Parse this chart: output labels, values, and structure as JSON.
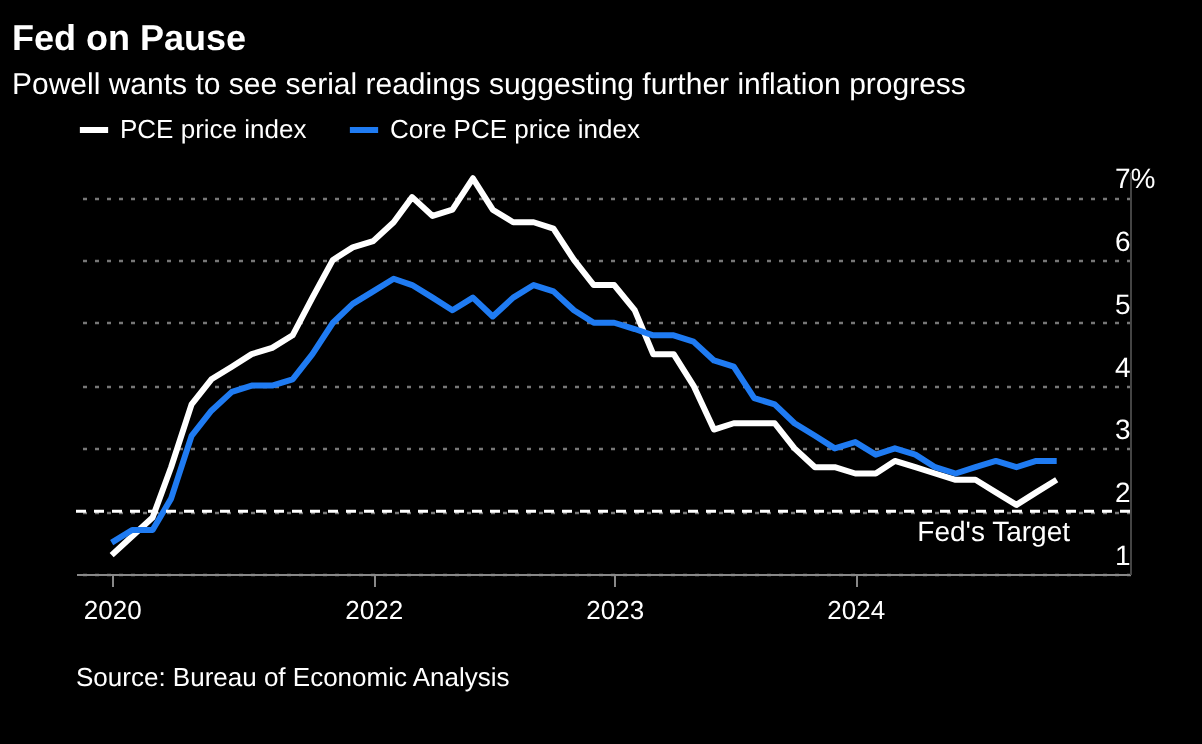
{
  "chart_data": {
    "type": "line",
    "title": "Fed on Pause",
    "subtitle": "Powell wants to see serial readings suggesting further inflation progress",
    "x": [
      "2020-12",
      "2021-01",
      "2021-02",
      "2021-03",
      "2021-04",
      "2021-05",
      "2021-06",
      "2021-07",
      "2021-08",
      "2021-09",
      "2021-10",
      "2021-11",
      "2021-12",
      "2022-01",
      "2022-02",
      "2022-03",
      "2022-04",
      "2022-05",
      "2022-06",
      "2022-07",
      "2022-08",
      "2022-09",
      "2022-10",
      "2022-11",
      "2022-12",
      "2023-01",
      "2023-02",
      "2023-03",
      "2023-04",
      "2023-05",
      "2023-06",
      "2023-07",
      "2023-08",
      "2023-09",
      "2023-10",
      "2023-11",
      "2023-12",
      "2024-01",
      "2024-02",
      "2024-03",
      "2024-04",
      "2024-05",
      "2024-06",
      "2024-07",
      "2024-08",
      "2024-09",
      "2024-10",
      "2024-11"
    ],
    "series": [
      {
        "name": "PCE price index",
        "color": "#ffffff",
        "values": [
          1.3,
          1.6,
          1.9,
          2.7,
          3.7,
          4.1,
          4.3,
          4.5,
          4.6,
          4.8,
          5.4,
          6.0,
          6.2,
          6.3,
          6.6,
          7.0,
          6.7,
          6.8,
          7.3,
          6.8,
          6.6,
          6.6,
          6.5,
          6.0,
          5.6,
          5.6,
          5.2,
          4.5,
          4.5,
          4.0,
          3.3,
          3.4,
          3.4,
          3.4,
          3.0,
          2.7,
          2.7,
          2.6,
          2.6,
          2.8,
          2.7,
          2.6,
          2.5,
          2.5,
          2.3,
          2.1,
          2.3,
          2.5
        ]
      },
      {
        "name": "Core PCE price index",
        "color": "#1f7bf2",
        "values": [
          1.5,
          1.7,
          1.7,
          2.2,
          3.2,
          3.6,
          3.9,
          4.0,
          4.0,
          4.1,
          4.5,
          5.0,
          5.3,
          5.5,
          5.7,
          5.6,
          5.4,
          5.2,
          5.4,
          5.1,
          5.4,
          5.6,
          5.5,
          5.2,
          5.0,
          5.0,
          4.9,
          4.8,
          4.8,
          4.7,
          4.4,
          4.3,
          3.8,
          3.7,
          3.4,
          3.2,
          3.0,
          3.1,
          2.9,
          3.0,
          2.9,
          2.7,
          2.6,
          2.7,
          2.8,
          2.7,
          2.8,
          2.8
        ]
      }
    ],
    "xlim": [
      "2020-10-08",
      "2025-02-20"
    ],
    "xticks": [
      {
        "value": "2020-12",
        "label": "2020"
      },
      {
        "value": "2022-01",
        "label": "2022"
      },
      {
        "value": "2023-01",
        "label": "2023"
      },
      {
        "value": "2024-01",
        "label": "2024"
      }
    ],
    "ylim": [
      1,
      7.4
    ],
    "yticks": [
      1,
      2,
      3,
      4,
      5,
      6,
      {
        "value": 7,
        "label": "7%"
      }
    ],
    "ref_lines": [
      {
        "axis": "y",
        "value": 2,
        "label": "Fed's Target",
        "color": "#ffffff",
        "line_style": "dashed"
      }
    ],
    "annotations": [
      "Source: Bureau of Economic Analysis"
    ],
    "grid": "y",
    "legend": "top left",
    "line_style": "solid",
    "marker": "none"
  }
}
